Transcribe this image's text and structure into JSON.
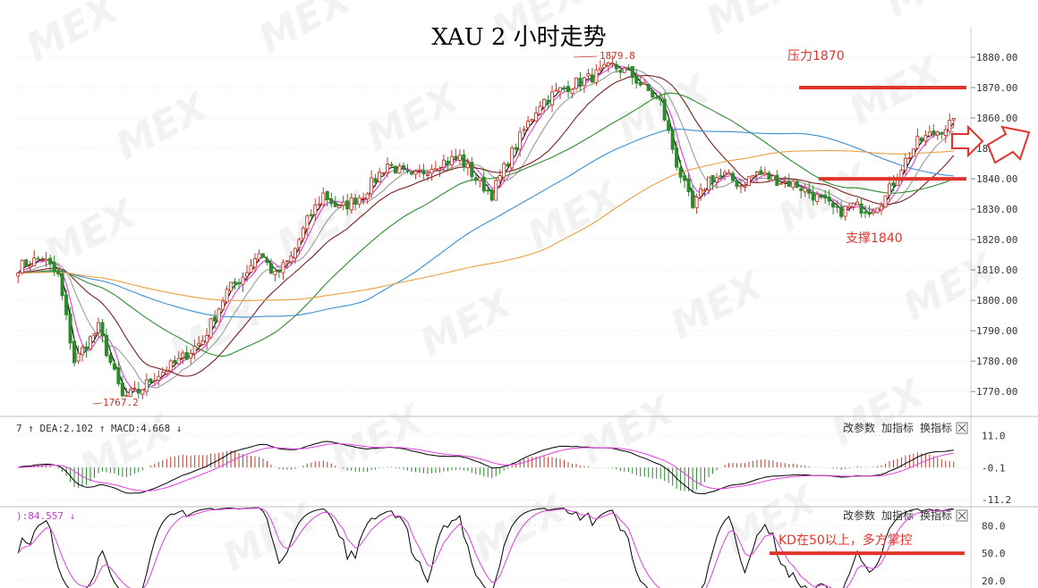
{
  "chart_data": {
    "type": "candlestick",
    "title": "XAU 2 小时走势",
    "main_panel": {
      "ylim": [
        1763,
        1890
      ],
      "yticks": [
        "1880.00",
        "1870.00",
        "1860.00",
        "1850.00",
        "1840.00",
        "1830.00",
        "1820.00",
        "1810.00",
        "1800.00",
        "1790.00",
        "1780.00",
        "1770.00"
      ],
      "ytick_values": [
        1880,
        1870,
        1860,
        1850,
        1840,
        1830,
        1820,
        1810,
        1800,
        1790,
        1780,
        1770
      ],
      "high_label": "1879.8",
      "low_label": "1767.2",
      "path": [
        [
          0,
          1811
        ],
        [
          6,
          1814
        ],
        [
          10,
          1808
        ],
        [
          14,
          1780
        ],
        [
          20,
          1791
        ],
        [
          26,
          1768
        ],
        [
          30,
          1770
        ],
        [
          34,
          1775
        ],
        [
          40,
          1780
        ],
        [
          46,
          1787
        ],
        [
          52,
          1803
        ],
        [
          56,
          1808
        ],
        [
          60,
          1816
        ],
        [
          62,
          1812
        ],
        [
          64,
          1808
        ],
        [
          68,
          1814
        ],
        [
          72,
          1826
        ],
        [
          76,
          1835
        ],
        [
          80,
          1830
        ],
        [
          86,
          1835
        ],
        [
          92,
          1845
        ],
        [
          98,
          1840
        ],
        [
          104,
          1845
        ],
        [
          110,
          1847
        ],
        [
          114,
          1840
        ],
        [
          118,
          1835
        ],
        [
          122,
          1846
        ],
        [
          126,
          1856
        ],
        [
          130,
          1865
        ],
        [
          136,
          1870
        ],
        [
          142,
          1873
        ],
        [
          148,
          1877
        ],
        [
          152,
          1875
        ],
        [
          156,
          1870
        ],
        [
          160,
          1865
        ],
        [
          164,
          1845
        ],
        [
          168,
          1830
        ],
        [
          172,
          1840
        ],
        [
          176,
          1841
        ],
        [
          180,
          1838
        ],
        [
          184,
          1842
        ],
        [
          188,
          1840
        ],
        [
          194,
          1838
        ],
        [
          200,
          1833
        ],
        [
          204,
          1829
        ],
        [
          208,
          1831
        ],
        [
          212,
          1830
        ],
        [
          216,
          1834
        ],
        [
          220,
          1844
        ],
        [
          224,
          1852
        ],
        [
          228,
          1855
        ],
        [
          232,
          1858
        ]
      ]
    },
    "price_levels": [
      {
        "label": "压力1870",
        "value": 1870,
        "color": "#e0352b"
      },
      {
        "label": "支撑1840",
        "value": 1840,
        "color": "#e0352b"
      }
    ],
    "moving_averages": [
      {
        "color": "#000000",
        "window": 3
      },
      {
        "color": "#e03ee0",
        "window": 5
      },
      {
        "color": "#9a9a9a",
        "window": 10
      },
      {
        "color": "#7a2020",
        "window": 20
      },
      {
        "color": "#2e8b2e",
        "window": 40
      },
      {
        "color": "#3a8fd0",
        "window": 75
      },
      {
        "color": "#e8a040",
        "window": 120
      }
    ],
    "macd_panel": {
      "header": "7 ↑ DEA:2.102 ↑ MACD:4.668 ↓",
      "dea_label": "DEA:2.102",
      "macd_label": "MACD:4.668",
      "yticks": [
        "11.0",
        "-0.1",
        "-11.2"
      ],
      "ytick_values": [
        11.0,
        -0.1,
        -11.2
      ],
      "ylim": [
        -13,
        14
      ]
    },
    "kd_panel": {
      "header": "):84.557 ↓",
      "yticks": [
        "80.0",
        "50.0",
        "20.0"
      ],
      "ytick_values": [
        80,
        50,
        20
      ],
      "ylim": [
        15,
        98
      ],
      "annotation": "KD在50以上，多方掌控",
      "level": 50
    },
    "controls": [
      "改参数",
      "加指标",
      "换指标"
    ],
    "watermark": "MEX"
  }
}
